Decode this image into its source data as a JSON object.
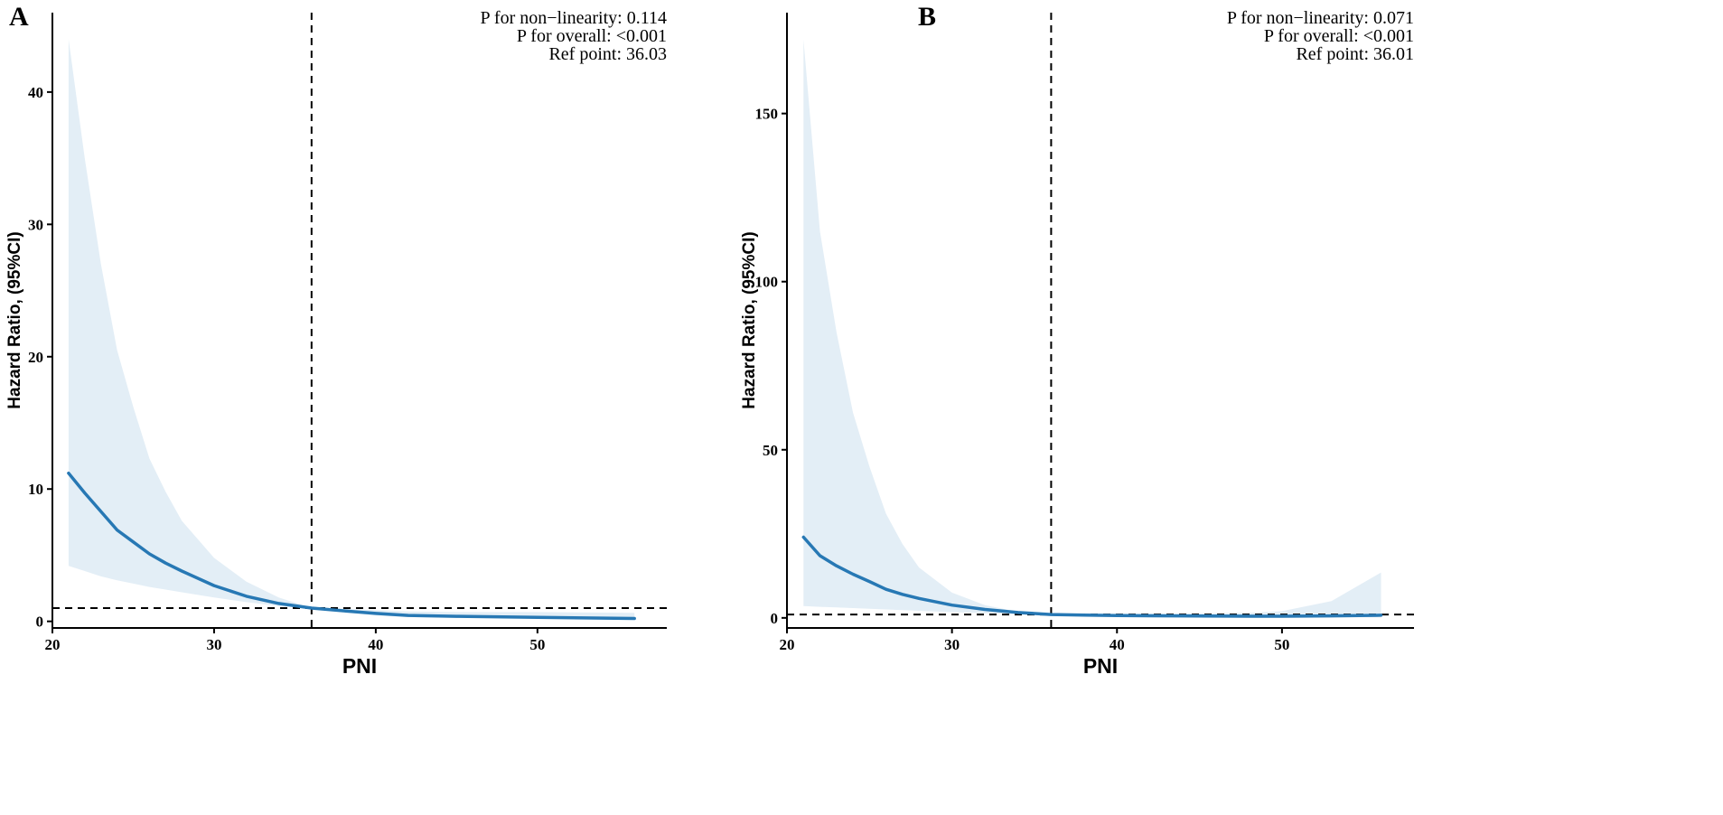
{
  "colors": {
    "curve": "#2778b4",
    "band": "#e3eef6",
    "axis": "#000000",
    "reference_lines": "#000000"
  },
  "chart_data": [
    {
      "type": "line",
      "panel_label": "A",
      "xlabel": "PNI",
      "ylabel": "Hazard Ratio, (95%CI)",
      "xlim": [
        20,
        58
      ],
      "ylim": [
        -0.5,
        46
      ],
      "xticks": [
        20,
        30,
        40,
        50
      ],
      "yticks": [
        0,
        10,
        20,
        30,
        40
      ],
      "reference_x": 36.03,
      "reference_y": 1,
      "annotations": [
        {
          "label": "P for non−linearity:",
          "value": "0.114"
        },
        {
          "label": "P for overall:",
          "value": "<0.001"
        },
        {
          "label": "Ref point:",
          "value": "36.03"
        }
      ],
      "series": [
        {
          "name": "Hazard Ratio",
          "x": [
            21,
            22,
            23,
            24,
            25,
            26,
            27,
            28,
            30,
            32,
            34,
            36.03,
            38,
            40,
            42,
            45,
            50,
            56
          ],
          "y": [
            11.2,
            9.7,
            8.3,
            6.9,
            6.0,
            5.1,
            4.4,
            3.8,
            2.7,
            1.9,
            1.35,
            1.0,
            0.8,
            0.6,
            0.45,
            0.38,
            0.3,
            0.22
          ],
          "lower": [
            4.2,
            3.8,
            3.4,
            3.1,
            2.85,
            2.6,
            2.4,
            2.2,
            1.8,
            1.45,
            1.15,
            1.0,
            0.7,
            0.45,
            0.32,
            0.28,
            0.22,
            0.15
          ],
          "upper": [
            44.0,
            35.0,
            27.0,
            20.5,
            16.2,
            12.3,
            9.8,
            7.6,
            4.8,
            3.0,
            1.8,
            1.0,
            0.95,
            0.85,
            0.75,
            0.7,
            0.7,
            0.65
          ]
        }
      ]
    },
    {
      "type": "line",
      "panel_label": "B",
      "xlabel": "PNI",
      "ylabel": "Hazard Ratio, (95%CI)",
      "xlim": [
        20,
        58
      ],
      "ylim": [
        -3,
        180
      ],
      "xticks": [
        20,
        30,
        40,
        50
      ],
      "yticks": [
        0,
        50,
        100,
        150
      ],
      "reference_x": 36.01,
      "reference_y": 1,
      "annotations": [
        {
          "label": "P for non−linearity:",
          "value": "0.071"
        },
        {
          "label": "P for overall:",
          "value": "<0.001"
        },
        {
          "label": "Ref point:",
          "value": "36.01"
        }
      ],
      "series": [
        {
          "name": "Hazard Ratio",
          "x": [
            21,
            22,
            23,
            24,
            25,
            26,
            27,
            28,
            30,
            32,
            34,
            36.01,
            38,
            40,
            42,
            45,
            48,
            50,
            53,
            56
          ],
          "y": [
            24.0,
            18.5,
            15.5,
            13.0,
            10.8,
            8.5,
            7.0,
            5.8,
            3.8,
            2.5,
            1.6,
            1.0,
            0.85,
            0.7,
            0.62,
            0.55,
            0.5,
            0.5,
            0.6,
            0.8
          ],
          "lower": [
            3.5,
            3.3,
            3.1,
            2.9,
            2.7,
            2.5,
            2.3,
            2.1,
            1.7,
            1.4,
            1.15,
            1.0,
            0.7,
            0.5,
            0.4,
            0.35,
            0.3,
            0.25,
            0.2,
            0.15
          ],
          "upper": [
            172,
            115,
            85,
            61,
            45,
            31,
            22,
            15,
            7.5,
            3.8,
            1.8,
            1.0,
            1.1,
            1.2,
            1.3,
            1.4,
            1.5,
            2.0,
            5.0,
            13.5
          ]
        }
      ]
    }
  ]
}
